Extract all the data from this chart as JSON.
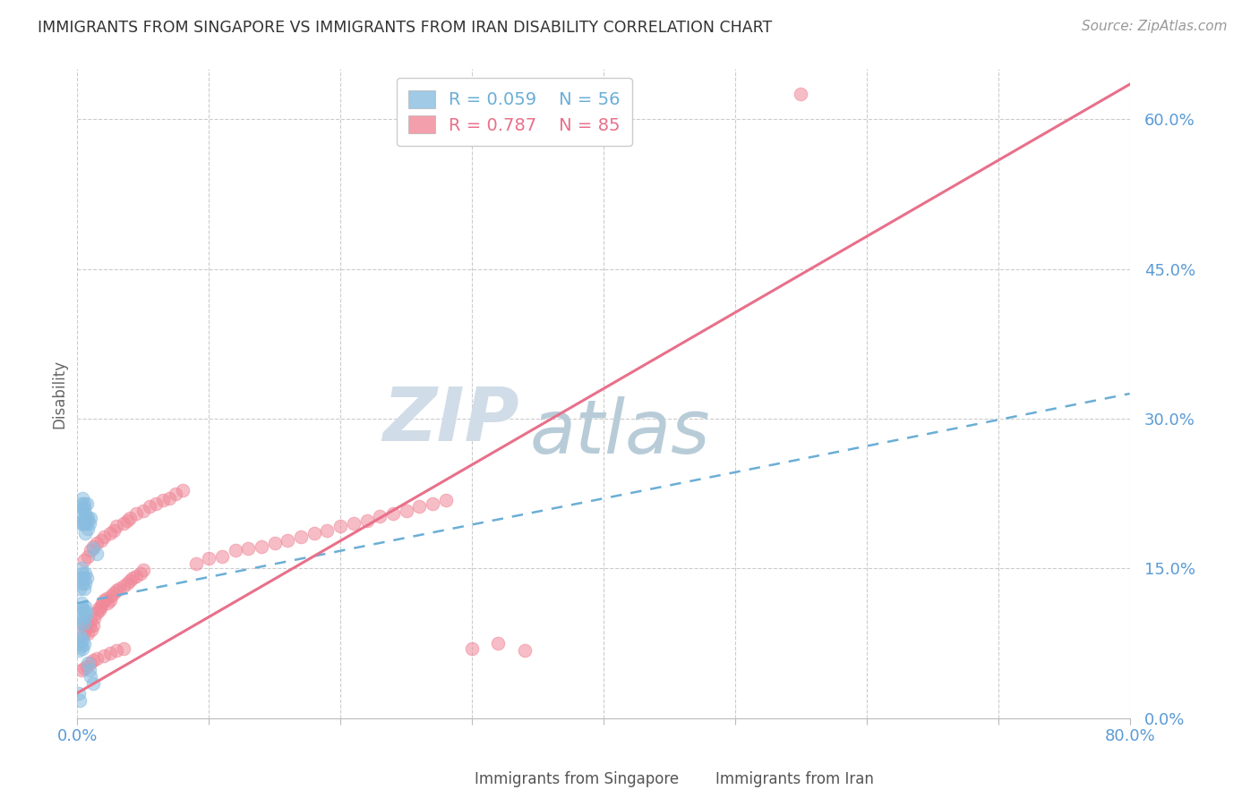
{
  "title": "IMMIGRANTS FROM SINGAPORE VS IMMIGRANTS FROM IRAN DISABILITY CORRELATION CHART",
  "source": "Source: ZipAtlas.com",
  "tick_color": "#5b9bd5",
  "ylabel": "Disability",
  "xlim": [
    0.0,
    0.8
  ],
  "ylim": [
    0.0,
    0.65
  ],
  "xticks": [
    0.0,
    0.1,
    0.2,
    0.3,
    0.4,
    0.5,
    0.6,
    0.7,
    0.8
  ],
  "yticks": [
    0.0,
    0.15,
    0.3,
    0.45,
    0.6
  ],
  "ytick_labels": [
    "0.0%",
    "15.0%",
    "30.0%",
    "45.0%",
    "60.0%"
  ],
  "singapore_color": "#89bde0",
  "iran_color": "#f08898",
  "singapore_line_color": "#6aaed6",
  "iran_line_color": "#e8708a",
  "watermark_zip": "ZIP",
  "watermark_atlas": "atlas",
  "watermark_color_zip": "#d0dde8",
  "watermark_color_atlas": "#b8ccd8",
  "sg_R": 0.059,
  "sg_N": 56,
  "iran_R": 0.787,
  "iran_N": 85,
  "sg_line_x0": 0.0,
  "sg_line_y0": 0.115,
  "sg_line_x1": 0.8,
  "sg_line_y1": 0.325,
  "iran_line_x0": 0.0,
  "iran_line_y0": 0.025,
  "iran_line_x1": 0.8,
  "iran_line_y1": 0.635,
  "singapore_x": [
    0.002,
    0.003,
    0.003,
    0.004,
    0.004,
    0.004,
    0.005,
    0.005,
    0.005,
    0.005,
    0.006,
    0.006,
    0.006,
    0.007,
    0.007,
    0.007,
    0.008,
    0.008,
    0.009,
    0.01,
    0.002,
    0.003,
    0.003,
    0.004,
    0.004,
    0.005,
    0.005,
    0.006,
    0.006,
    0.007,
    0.002,
    0.003,
    0.003,
    0.004,
    0.004,
    0.005,
    0.005,
    0.006,
    0.006,
    0.007,
    0.001,
    0.002,
    0.002,
    0.003,
    0.003,
    0.004,
    0.004,
    0.005,
    0.012,
    0.015,
    0.008,
    0.009,
    0.01,
    0.012,
    0.001,
    0.002
  ],
  "singapore_y": [
    0.195,
    0.205,
    0.215,
    0.195,
    0.21,
    0.22,
    0.195,
    0.2,
    0.215,
    0.21,
    0.185,
    0.195,
    0.205,
    0.195,
    0.2,
    0.215,
    0.19,
    0.2,
    0.195,
    0.2,
    0.13,
    0.14,
    0.15,
    0.135,
    0.145,
    0.13,
    0.14,
    0.135,
    0.145,
    0.14,
    0.095,
    0.105,
    0.115,
    0.1,
    0.11,
    0.095,
    0.108,
    0.102,
    0.112,
    0.105,
    0.068,
    0.075,
    0.082,
    0.072,
    0.08,
    0.07,
    0.078,
    0.074,
    0.17,
    0.165,
    0.055,
    0.048,
    0.042,
    0.035,
    0.025,
    0.018
  ],
  "iran_x": [
    0.003,
    0.005,
    0.006,
    0.007,
    0.008,
    0.009,
    0.01,
    0.011,
    0.012,
    0.013,
    0.015,
    0.016,
    0.017,
    0.018,
    0.019,
    0.02,
    0.022,
    0.023,
    0.025,
    0.026,
    0.028,
    0.03,
    0.032,
    0.035,
    0.038,
    0.04,
    0.042,
    0.045,
    0.048,
    0.05,
    0.005,
    0.008,
    0.01,
    0.012,
    0.015,
    0.018,
    0.02,
    0.025,
    0.028,
    0.03,
    0.035,
    0.038,
    0.04,
    0.045,
    0.05,
    0.055,
    0.06,
    0.065,
    0.07,
    0.075,
    0.08,
    0.09,
    0.1,
    0.11,
    0.12,
    0.13,
    0.14,
    0.15,
    0.16,
    0.17,
    0.18,
    0.19,
    0.2,
    0.21,
    0.22,
    0.23,
    0.24,
    0.25,
    0.26,
    0.27,
    0.28,
    0.3,
    0.32,
    0.34,
    0.55,
    0.003,
    0.005,
    0.007,
    0.01,
    0.012,
    0.015,
    0.02,
    0.025,
    0.03,
    0.035
  ],
  "iran_y": [
    0.095,
    0.085,
    0.09,
    0.095,
    0.085,
    0.092,
    0.098,
    0.088,
    0.093,
    0.1,
    0.105,
    0.11,
    0.108,
    0.112,
    0.115,
    0.118,
    0.12,
    0.115,
    0.118,
    0.122,
    0.125,
    0.128,
    0.13,
    0.132,
    0.135,
    0.138,
    0.14,
    0.142,
    0.145,
    0.148,
    0.158,
    0.162,
    0.168,
    0.172,
    0.175,
    0.178,
    0.182,
    0.185,
    0.188,
    0.192,
    0.195,
    0.198,
    0.2,
    0.205,
    0.208,
    0.212,
    0.215,
    0.218,
    0.22,
    0.225,
    0.228,
    0.155,
    0.16,
    0.162,
    0.168,
    0.17,
    0.172,
    0.175,
    0.178,
    0.182,
    0.185,
    0.188,
    0.192,
    0.195,
    0.198,
    0.202,
    0.205,
    0.208,
    0.212,
    0.215,
    0.218,
    0.07,
    0.075,
    0.068,
    0.625,
    0.048,
    0.05,
    0.052,
    0.055,
    0.058,
    0.06,
    0.062,
    0.065,
    0.068,
    0.07
  ]
}
